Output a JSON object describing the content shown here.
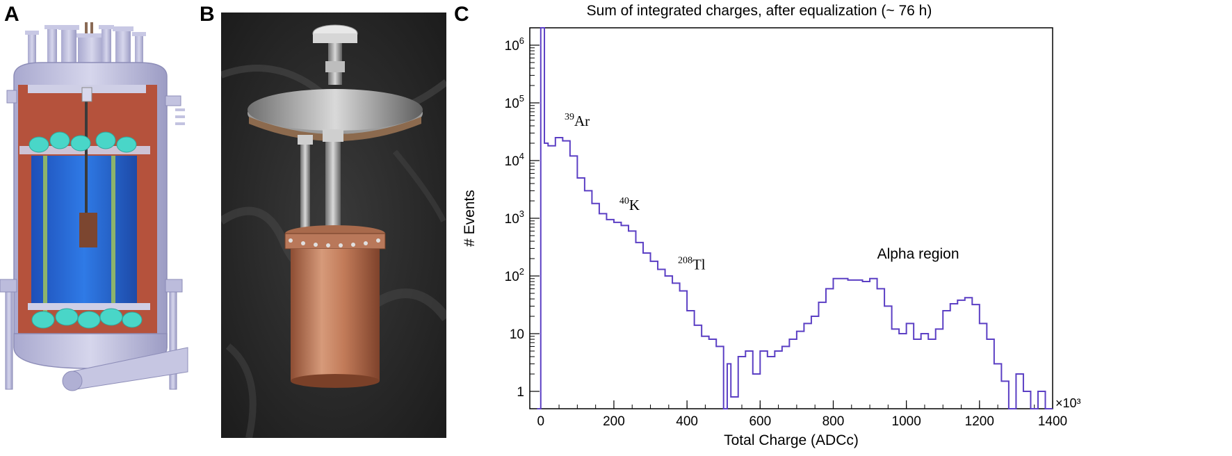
{
  "panels": {
    "a_label": "A",
    "b_label": "B",
    "c_label": "C"
  },
  "colors": {
    "histogram": "#5b3fc4",
    "copper": "#b86e4a",
    "cryostat_frame": "#b3b3d6",
    "vessel_interior": "#b5523c",
    "blue_volume": "#2d6fd6",
    "pmt": "#49d6c8"
  },
  "chart_data": {
    "type": "histogram",
    "title": "Sum of integrated charges, after equalization (~ 76 h)",
    "xlabel": "Total Charge (ADCc)",
    "ylabel": "# Events",
    "x_multiplier": "×10³",
    "xlim": [
      -30,
      1400
    ],
    "ylim": [
      0.5,
      2000000
    ],
    "yscale": "log",
    "xticks": [
      0,
      200,
      400,
      600,
      800,
      1000,
      1200,
      1400
    ],
    "yticks": [
      {
        "value": 1,
        "base": "1",
        "exp": ""
      },
      {
        "value": 10,
        "base": "10",
        "exp": ""
      },
      {
        "value": 100,
        "base": "10",
        "exp": "2"
      },
      {
        "value": 1000,
        "base": "10",
        "exp": "3"
      },
      {
        "value": 10000,
        "base": "10",
        "exp": "4"
      },
      {
        "value": 100000,
        "base": "10",
        "exp": "5"
      },
      {
        "value": 1000000,
        "base": "10",
        "exp": "6"
      }
    ],
    "annotations": [
      {
        "sup": "39",
        "text": "Ar",
        "x": 65,
        "y": 40000
      },
      {
        "sup": "40",
        "text": "K",
        "x": 215,
        "y": 1400
      },
      {
        "sup": "208",
        "text": "Tl",
        "x": 375,
        "y": 130
      },
      {
        "sup": "",
        "text": "Alpha region",
        "x": 920,
        "y": 200
      }
    ],
    "series": [
      {
        "x": [
          -10,
          0,
          10,
          20,
          40,
          60,
          80,
          100,
          120,
          140,
          160,
          180,
          200,
          220,
          240,
          260,
          280,
          300,
          320,
          340,
          360,
          380,
          400,
          420,
          440,
          460,
          480,
          500,
          510,
          520,
          540,
          560,
          580,
          600,
          620,
          640,
          660,
          680,
          700,
          720,
          740,
          760,
          780,
          800,
          820,
          840,
          860,
          880,
          900,
          920,
          940,
          960,
          980,
          1000,
          1020,
          1040,
          1060,
          1080,
          1100,
          1120,
          1140,
          1160,
          1180,
          1200,
          1220,
          1240,
          1260,
          1280,
          1300,
          1320,
          1340,
          1360,
          1380,
          1395
        ],
        "y": [
          0.5,
          2000000,
          20000,
          18000,
          25000,
          22000,
          12000,
          5000,
          3000,
          1800,
          1200,
          950,
          850,
          750,
          600,
          380,
          250,
          180,
          130,
          100,
          75,
          55,
          25,
          14,
          9,
          8,
          6,
          0.5,
          3,
          0.8,
          4,
          5,
          2,
          5,
          4,
          5,
          6,
          8,
          11,
          15,
          20,
          35,
          60,
          90,
          90,
          85,
          85,
          80,
          90,
          60,
          30,
          12,
          10,
          15,
          8,
          10,
          8,
          12,
          25,
          33,
          38,
          42,
          32,
          15,
          8,
          3,
          1.5,
          0.5,
          2,
          1,
          0.5,
          1,
          0.5,
          0.5
        ]
      }
    ]
  }
}
